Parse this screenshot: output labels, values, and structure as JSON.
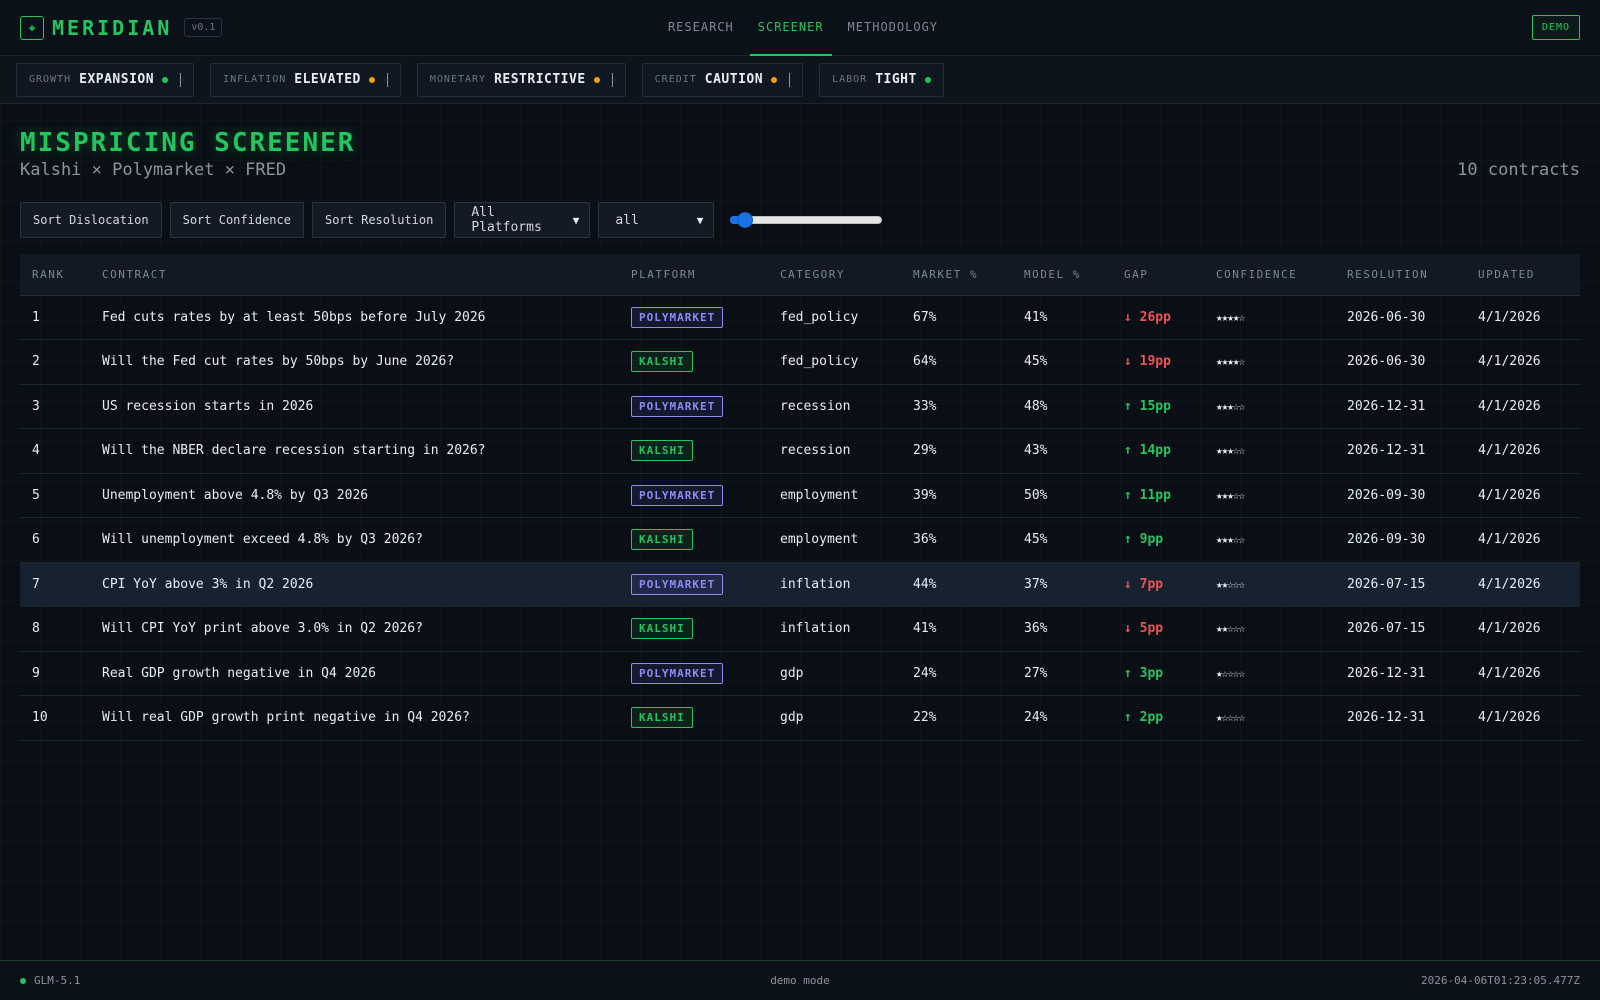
{
  "brand": {
    "name": "MERIDIAN",
    "version": "v0.1",
    "logo_icon": "◈"
  },
  "nav": {
    "tabs": [
      {
        "label": "RESEARCH",
        "active": false
      },
      {
        "label": "SCREENER",
        "active": true
      },
      {
        "label": "METHODOLOGY",
        "active": false
      }
    ],
    "demo_label": "DEMO"
  },
  "regimes": [
    {
      "key": "GROWTH",
      "value": "EXPANSION",
      "dot_color": "#22c55e"
    },
    {
      "key": "INFLATION",
      "value": "ELEVATED",
      "dot_color": "#f59e0b"
    },
    {
      "key": "MONETARY",
      "value": "RESTRICTIVE",
      "dot_color": "#f59e0b"
    },
    {
      "key": "CREDIT",
      "value": "CAUTION",
      "dot_color": "#f59e0b"
    },
    {
      "key": "LABOR",
      "value": "TIGHT",
      "dot_color": "#22c55e"
    }
  ],
  "page": {
    "title": "MISPRICING SCREENER",
    "subtitle": "Kalshi × Polymarket × FRED",
    "count": "10 contracts"
  },
  "controls": {
    "sort_dislocation": "Sort Dislocation",
    "sort_confidence": "Sort Confidence",
    "sort_resolution": "Sort Resolution",
    "platform_select": "All Platforms",
    "category_select": "all",
    "slider_value": 0.05
  },
  "table": {
    "headers": [
      "RANK",
      "CONTRACT",
      "PLATFORM",
      "CATEGORY",
      "MARKET %",
      "MODEL %",
      "GAP",
      "CONFIDENCE",
      "RESOLUTION",
      "UPDATED"
    ],
    "rows": [
      {
        "rank": "1",
        "contract": "Fed cuts rates by at least 50bps before July 2026",
        "platform": "POLYMARKET",
        "category": "fed_policy",
        "market": "67%",
        "model": "41%",
        "gap": "↓ 26pp",
        "dir": "down",
        "confidence": "★★★★☆",
        "resolution": "2026-06-30",
        "updated": "4/1/2026"
      },
      {
        "rank": "2",
        "contract": "Will the Fed cut rates by 50bps by June 2026?",
        "platform": "KALSHI",
        "category": "fed_policy",
        "market": "64%",
        "model": "45%",
        "gap": "↓ 19pp",
        "dir": "down",
        "confidence": "★★★★☆",
        "resolution": "2026-06-30",
        "updated": "4/1/2026"
      },
      {
        "rank": "3",
        "contract": "US recession starts in 2026",
        "platform": "POLYMARKET",
        "category": "recession",
        "market": "33%",
        "model": "48%",
        "gap": "↑ 15pp",
        "dir": "up",
        "confidence": "★★★☆☆",
        "resolution": "2026-12-31",
        "updated": "4/1/2026"
      },
      {
        "rank": "4",
        "contract": "Will the NBER declare recession starting in 2026?",
        "platform": "KALSHI",
        "category": "recession",
        "market": "29%",
        "model": "43%",
        "gap": "↑ 14pp",
        "dir": "up",
        "confidence": "★★★☆☆",
        "resolution": "2026-12-31",
        "updated": "4/1/2026"
      },
      {
        "rank": "5",
        "contract": "Unemployment above 4.8% by Q3 2026",
        "platform": "POLYMARKET",
        "category": "employment",
        "market": "39%",
        "model": "50%",
        "gap": "↑ 11pp",
        "dir": "up",
        "confidence": "★★★☆☆",
        "resolution": "2026-09-30",
        "updated": "4/1/2026"
      },
      {
        "rank": "6",
        "contract": "Will unemployment exceed 4.8% by Q3 2026?",
        "platform": "KALSHI",
        "category": "employment",
        "market": "36%",
        "model": "45%",
        "gap": "↑ 9pp",
        "dir": "up",
        "confidence": "★★★☆☆",
        "resolution": "2026-09-30",
        "updated": "4/1/2026"
      },
      {
        "rank": "7",
        "contract": "CPI YoY above 3% in Q2 2026",
        "platform": "POLYMARKET",
        "category": "inflation",
        "market": "44%",
        "model": "37%",
        "gap": "↓ 7pp",
        "dir": "down",
        "confidence": "★★☆☆☆",
        "resolution": "2026-07-15",
        "updated": "4/1/2026",
        "highlight": true
      },
      {
        "rank": "8",
        "contract": "Will CPI YoY print above 3.0% in Q2 2026?",
        "platform": "KALSHI",
        "category": "inflation",
        "market": "41%",
        "model": "36%",
        "gap": "↓ 5pp",
        "dir": "down",
        "confidence": "★★☆☆☆",
        "resolution": "2026-07-15",
        "updated": "4/1/2026"
      },
      {
        "rank": "9",
        "contract": "Real GDP growth negative in Q4 2026",
        "platform": "POLYMARKET",
        "category": "gdp",
        "market": "24%",
        "model": "27%",
        "gap": "↑ 3pp",
        "dir": "up",
        "confidence": "★☆☆☆☆",
        "resolution": "2026-12-31",
        "updated": "4/1/2026"
      },
      {
        "rank": "10",
        "contract": "Will real GDP growth print negative in Q4 2026?",
        "platform": "KALSHI",
        "category": "gdp",
        "market": "22%",
        "model": "24%",
        "gap": "↑ 2pp",
        "dir": "up",
        "confidence": "★☆☆☆☆",
        "resolution": "2026-12-31",
        "updated": "4/1/2026"
      }
    ]
  },
  "footer": {
    "model": "GLM-5.1",
    "status_dot_color": "#22c55e",
    "mode": "demo mode",
    "timestamp": "2026-04-06T01:23:05.477Z"
  },
  "colors": {
    "accent": "#22c55e",
    "polymarket": "#8b8cf0",
    "gap_down": "#f05252",
    "gap_up": "#22c55e"
  }
}
